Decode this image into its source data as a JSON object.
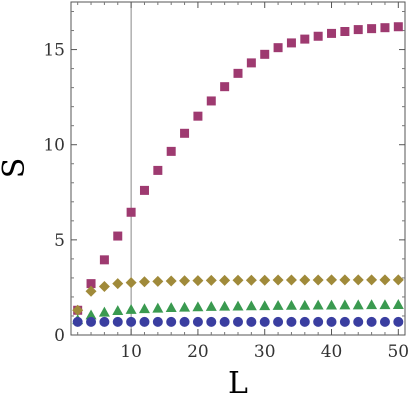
{
  "chart_data": {
    "type": "scatter",
    "title": "",
    "xlabel": "L",
    "ylabel": "S",
    "xlim": [
      1,
      51
    ],
    "ylim": [
      0,
      17.5
    ],
    "x_ticks": [
      10,
      20,
      30,
      40,
      50
    ],
    "y_ticks": [
      0,
      5,
      10,
      15
    ],
    "grid": false,
    "vertical_reference_line": 10,
    "series": [
      {
        "marker": "square",
        "color": "#9e3a70",
        "x": [
          2,
          4,
          6,
          8,
          10,
          12,
          14,
          16,
          18,
          20,
          22,
          24,
          26,
          28,
          30,
          32,
          34,
          36,
          38,
          40,
          42,
          44,
          46,
          48,
          50
        ],
        "y": [
          1.3,
          2.7,
          3.95,
          5.2,
          6.45,
          7.6,
          8.65,
          9.65,
          10.6,
          11.5,
          12.3,
          13.05,
          13.75,
          14.3,
          14.75,
          15.1,
          15.35,
          15.55,
          15.7,
          15.85,
          15.95,
          16.05,
          16.1,
          16.15,
          16.2
        ]
      },
      {
        "marker": "diamond",
        "color": "#a08a3a",
        "x": [
          2,
          4,
          6,
          8,
          10,
          12,
          14,
          16,
          18,
          20,
          22,
          24,
          26,
          28,
          30,
          32,
          34,
          36,
          38,
          40,
          42,
          44,
          46,
          48,
          50
        ],
        "y": [
          1.3,
          2.3,
          2.55,
          2.7,
          2.75,
          2.8,
          2.82,
          2.84,
          2.85,
          2.86,
          2.87,
          2.87,
          2.88,
          2.88,
          2.88,
          2.89,
          2.89,
          2.89,
          2.89,
          2.9,
          2.9,
          2.9,
          2.9,
          2.9,
          2.9
        ]
      },
      {
        "marker": "triangle",
        "color": "#3a9a50",
        "x": [
          2,
          4,
          6,
          8,
          10,
          12,
          14,
          16,
          18,
          20,
          22,
          24,
          26,
          28,
          30,
          32,
          34,
          36,
          38,
          40,
          42,
          44,
          46,
          48,
          50
        ],
        "y": [
          0.8,
          1.05,
          1.2,
          1.28,
          1.34,
          1.38,
          1.41,
          1.44,
          1.46,
          1.48,
          1.5,
          1.51,
          1.52,
          1.53,
          1.54,
          1.55,
          1.56,
          1.56,
          1.57,
          1.57,
          1.58,
          1.58,
          1.59,
          1.59,
          1.6
        ]
      },
      {
        "marker": "circle",
        "color": "#3a3ea0",
        "x": [
          2,
          4,
          6,
          8,
          10,
          12,
          14,
          16,
          18,
          20,
          22,
          24,
          26,
          28,
          30,
          32,
          34,
          36,
          38,
          40,
          42,
          44,
          46,
          48,
          50
        ],
        "y": [
          0.69,
          0.69,
          0.69,
          0.69,
          0.69,
          0.69,
          0.69,
          0.69,
          0.69,
          0.69,
          0.69,
          0.69,
          0.69,
          0.69,
          0.69,
          0.69,
          0.69,
          0.69,
          0.69,
          0.69,
          0.69,
          0.69,
          0.69,
          0.69,
          0.69
        ]
      }
    ]
  }
}
